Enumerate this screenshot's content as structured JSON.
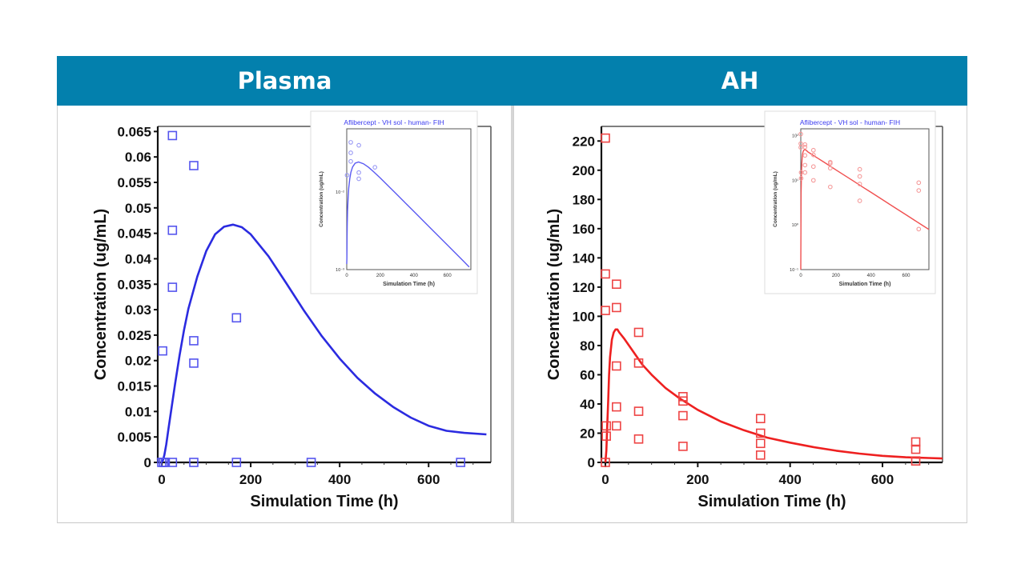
{
  "header": {
    "left_title": "Plasma",
    "right_title": "AH",
    "bar_color": "#0380AD"
  },
  "chart_data": [
    {
      "type": "scatter",
      "panel": "Plasma",
      "xlabel": "Simulation Time (h)",
      "ylabel": "Concentration (ug/mL)",
      "xlim": [
        0,
        740
      ],
      "ylim": [
        0,
        0.066
      ],
      "x_ticks": [
        0,
        200,
        400,
        600
      ],
      "x_tick_labels": [
        "0",
        "200",
        "400",
        "600"
      ],
      "y_ticks": [
        0,
        0.005,
        0.01,
        0.015,
        0.02,
        0.025,
        0.03,
        0.035,
        0.04,
        0.045,
        0.05,
        0.055,
        0.06,
        0.065
      ],
      "y_tick_labels": [
        "0",
        "0.005",
        "0.01",
        "0.015",
        "0.02",
        "0.025",
        "0.03",
        "0.035",
        "0.04",
        "0.045",
        "0.05",
        "0.055",
        "0.06",
        "0.065"
      ],
      "grid": false,
      "color": "#2B2BE0",
      "series": [
        {
          "name": "Simulated",
          "kind": "line",
          "x": [
            0,
            3,
            6,
            10,
            15,
            20,
            30,
            40,
            50,
            60,
            80,
            100,
            120,
            140,
            160,
            180,
            200,
            240,
            280,
            320,
            360,
            400,
            440,
            480,
            520,
            560,
            600,
            640,
            680,
            730
          ],
          "y": [
            0,
            0.0005,
            0.0015,
            0.0035,
            0.0065,
            0.0095,
            0.0155,
            0.021,
            0.026,
            0.0302,
            0.0365,
            0.0415,
            0.0448,
            0.0463,
            0.0467,
            0.0462,
            0.0448,
            0.0405,
            0.0352,
            0.0298,
            0.0248,
            0.0204,
            0.0166,
            0.0135,
            0.0109,
            0.0088,
            0.0072,
            0.0062,
            0.0058,
            0.0055
          ]
        },
        {
          "name": "Observed",
          "kind": "scatter",
          "marker": "square",
          "points": [
            [
              0,
              0
            ],
            [
              4,
              0
            ],
            [
              8,
              0
            ],
            [
              2,
              0.0219
            ],
            [
              24,
              0.0642
            ],
            [
              24,
              0.0456
            ],
            [
              24,
              0.0344
            ],
            [
              24,
              0
            ],
            [
              72,
              0.0583
            ],
            [
              72,
              0.0239
            ],
            [
              72,
              0.0195
            ],
            [
              72,
              0
            ],
            [
              168,
              0.0284
            ],
            [
              168,
              0
            ],
            [
              336,
              0
            ],
            [
              672,
              0
            ]
          ]
        }
      ],
      "inset": {
        "title": "Aflibercept - VH sol - human- FIH",
        "xlabel": "Simulation Time (h)",
        "ylabel": "Concentration (ug/mL)",
        "yscale": "log",
        "x_tick_labels": [
          "0",
          "200",
          "400",
          "600"
        ],
        "y_tick_labels": [
          "10⁻³",
          "10⁻²"
        ]
      }
    },
    {
      "type": "scatter",
      "panel": "AH",
      "xlabel": "Simulation Time (h)",
      "ylabel": "Concentration (ug/mL)",
      "xlim": [
        0,
        730
      ],
      "ylim": [
        0,
        230
      ],
      "x_ticks": [
        0,
        200,
        400,
        600
      ],
      "x_tick_labels": [
        "0",
        "200",
        "400",
        "600"
      ],
      "y_ticks": [
        0,
        20,
        40,
        60,
        80,
        100,
        120,
        140,
        160,
        180,
        200,
        220
      ],
      "y_tick_labels": [
        "0",
        "20",
        "40",
        "60",
        "80",
        "100",
        "120",
        "140",
        "160",
        "180",
        "200",
        "220"
      ],
      "grid": false,
      "color": "#EE2020",
      "series": [
        {
          "name": "Simulated",
          "kind": "line",
          "x": [
            0,
            2,
            4,
            6,
            8,
            10,
            14,
            18,
            22,
            26,
            30,
            40,
            60,
            80,
            100,
            130,
            160,
            200,
            250,
            300,
            350,
            400,
            450,
            500,
            550,
            600,
            650,
            700,
            730
          ],
          "y": [
            0,
            8,
            25,
            42,
            60,
            72,
            84,
            89,
            91,
            91,
            89,
            85,
            76,
            67,
            60,
            51,
            44,
            36,
            28,
            22,
            17,
            13.5,
            10.5,
            8,
            6,
            4.5,
            3.5,
            3,
            2.7
          ]
        },
        {
          "name": "Observed",
          "kind": "scatter",
          "marker": "square",
          "points": [
            [
              0,
              222
            ],
            [
              0,
              129
            ],
            [
              0,
              104
            ],
            [
              2,
              25
            ],
            [
              2,
              18
            ],
            [
              0,
              0
            ],
            [
              24,
              122
            ],
            [
              24,
              106
            ],
            [
              24,
              66
            ],
            [
              24,
              38
            ],
            [
              24,
              25
            ],
            [
              72,
              89
            ],
            [
              72,
              68
            ],
            [
              72,
              35
            ],
            [
              72,
              16
            ],
            [
              168,
              45
            ],
            [
              168,
              42
            ],
            [
              168,
              32
            ],
            [
              168,
              11
            ],
            [
              336,
              30
            ],
            [
              336,
              20
            ],
            [
              336,
              13
            ],
            [
              336,
              5
            ],
            [
              672,
              14
            ],
            [
              672,
              9
            ],
            [
              672,
              1
            ]
          ]
        }
      ],
      "inset": {
        "title": "Aflibercept - VH sol - human- FIH",
        "xlabel": "Simulation Time (h)",
        "ylabel": "Concentration (ug/mL)",
        "yscale": "log",
        "x_tick_labels": [
          "0",
          "200",
          "400",
          "600"
        ],
        "y_tick_labels": [
          "10⁻¹",
          "10⁰",
          "10¹",
          "10²"
        ]
      }
    }
  ]
}
